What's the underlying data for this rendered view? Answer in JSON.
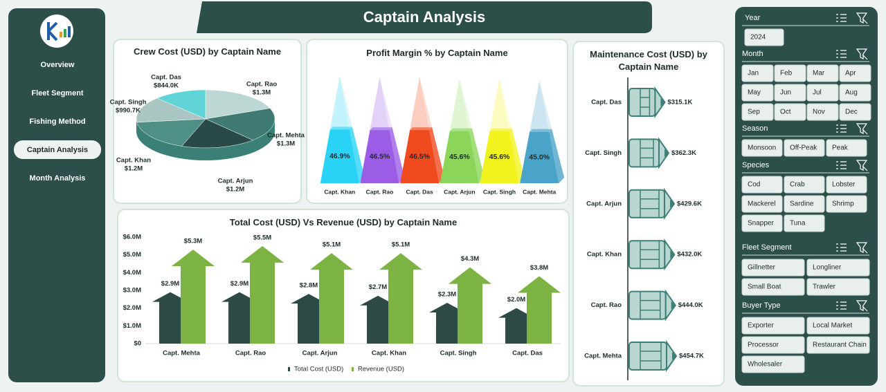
{
  "header": {
    "title": "Captain Analysis"
  },
  "nav": {
    "items": [
      "Overview",
      "Fleet Segment",
      "Fishing Method",
      "Captain Analysis",
      "Month Analysis"
    ],
    "active": 3
  },
  "slicers": [
    {
      "title": "Year",
      "items": [
        "2024"
      ]
    },
    {
      "title": "Month",
      "items": [
        "Jan",
        "Feb",
        "Mar",
        "Apr",
        "May",
        "Jun",
        "Jul",
        "Aug",
        "Sep",
        "Oct",
        "Nov",
        "Dec"
      ]
    },
    {
      "title": "Season",
      "items": [
        "Monsoon",
        "Off-Peak",
        "Peak"
      ]
    },
    {
      "title": "Species",
      "items": [
        "Cod",
        "Crab",
        "Lobster",
        "Mackerel",
        "Sardine",
        "Shrimp",
        "Snapper",
        "Tuna"
      ]
    },
    {
      "title": "Fleet Segment",
      "items": [
        "Gillnetter",
        "Longliner",
        "Small Boat",
        "Trawler"
      ]
    },
    {
      "title": "Buyer Type",
      "items": [
        "Exporter",
        "Local Market",
        "Processor",
        "Restaurant Chain",
        "Wholesaler"
      ]
    }
  ],
  "chart_data": [
    {
      "type": "pie",
      "title": "Crew Cost (USD) by Captain Name",
      "categories": [
        "Capt. Rao",
        "Capt. Mehta",
        "Capt. Arjun",
        "Capt. Khan",
        "Capt. Singh",
        "Capt. Das"
      ],
      "values": [
        1300000,
        1300000,
        1200000,
        1200000,
        990700,
        844000
      ],
      "value_labels": [
        "$1.3M",
        "$1.3M",
        "$1.2M",
        "$1.2M",
        "$990.7K",
        "$844.0K"
      ],
      "colors": [
        "#bcd6d3",
        "#3f7a73",
        "#2a4a47",
        "#4e8f86",
        "#a9c6c2",
        "#5fd3d6"
      ]
    },
    {
      "type": "pyramid",
      "title": "Profit Margin % by Captain Name",
      "categories": [
        "Capt. Khan",
        "Capt. Rao",
        "Capt. Das",
        "Capt. Arjun",
        "Capt. Singh",
        "Capt. Mehta"
      ],
      "values": [
        46.9,
        46.5,
        46.5,
        45.6,
        45.6,
        45.0
      ],
      "value_labels": [
        "46.9%",
        "46.5%",
        "46.5%",
        "45.6%",
        "45.6%",
        "45.0%"
      ],
      "colors": [
        "#29d3f5",
        "#9b5de5",
        "#f04a1f",
        "#8bd65a",
        "#f2f21e",
        "#4aa3c9"
      ]
    },
    {
      "type": "bar",
      "title": "Total Cost (USD) Vs Revenue (USD) by Captain Name",
      "categories": [
        "Capt. Mehta",
        "Capt. Rao",
        "Capt. Arjun",
        "Capt. Khan",
        "Capt. Singh",
        "Capt. Das"
      ],
      "series": [
        {
          "name": "Total Cost (USD)",
          "color": "#2d4a47",
          "values": [
            2900000,
            2900000,
            2800000,
            2700000,
            2300000,
            2000000
          ],
          "value_labels": [
            "$2.9M",
            "$2.9M",
            "$2.8M",
            "$2.7M",
            "$2.3M",
            "$2.0M"
          ]
        },
        {
          "name": "Revenue (USD)",
          "color": "#7cb342",
          "values": [
            5300000,
            5500000,
            5100000,
            5100000,
            4300000,
            3800000
          ],
          "value_labels": [
            "$5.3M",
            "$5.5M",
            "$5.1M",
            "$5.1M",
            "$4.3M",
            "$3.8M"
          ]
        }
      ],
      "ylim": [
        0,
        6000000
      ],
      "yticks": [
        {
          "value": 0,
          "label": "$0"
        },
        {
          "value": 1000000,
          "label": "$1.0M"
        },
        {
          "value": 2000000,
          "label": "$2.0M"
        },
        {
          "value": 3000000,
          "label": "$3.0M"
        },
        {
          "value": 4000000,
          "label": "$4.0M"
        },
        {
          "value": 5000000,
          "label": "$5.0M"
        },
        {
          "value": 6000000,
          "label": "$6.0M"
        }
      ]
    },
    {
      "type": "hbar",
      "title": "Maintenance Cost (USD) by Captain Name",
      "categories": [
        "Capt. Das",
        "Capt. Singh",
        "Capt. Arjun",
        "Capt. Khan",
        "Capt. Rao",
        "Capt. Mehta"
      ],
      "values": [
        315100,
        362300,
        429600,
        432000,
        444000,
        454700
      ],
      "value_labels": [
        "$315.1K",
        "$362.3K",
        "$429.6K",
        "$432.0K",
        "$444.0K",
        "$454.7K"
      ],
      "color": "#b9d6d1"
    }
  ]
}
